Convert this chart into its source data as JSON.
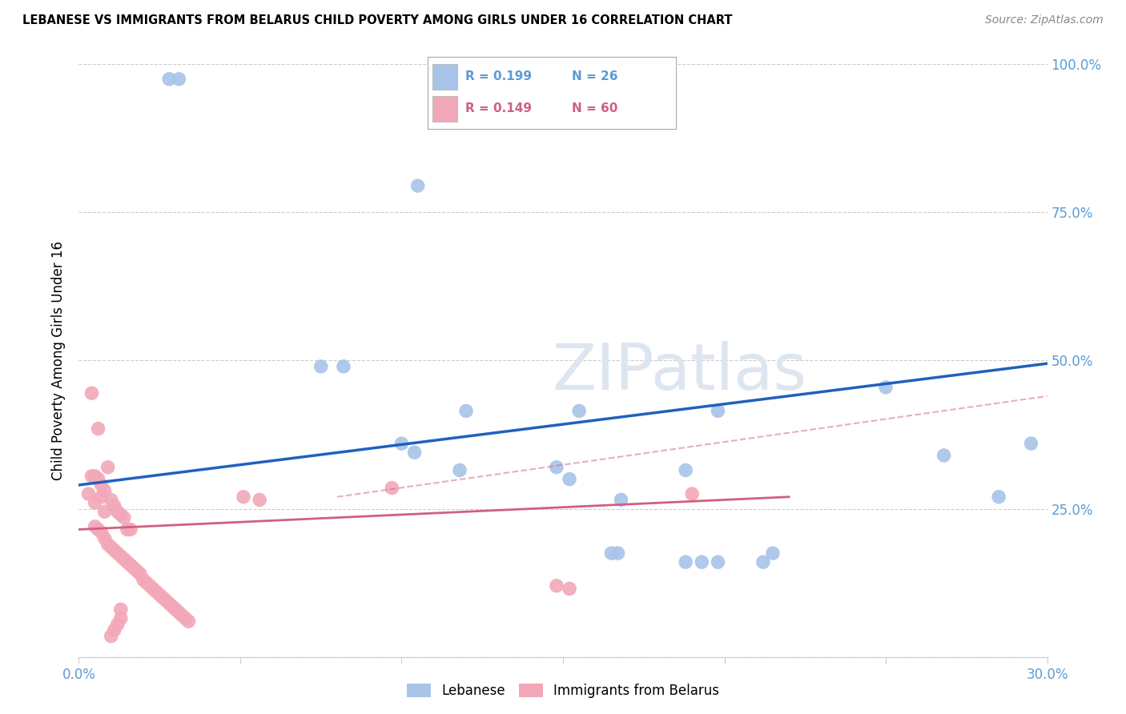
{
  "title": "LEBANESE VS IMMIGRANTS FROM BELARUS CHILD POVERTY AMONG GIRLS UNDER 16 CORRELATION CHART",
  "source": "Source: ZipAtlas.com",
  "ylabel": "Child Poverty Among Girls Under 16",
  "xlim": [
    0.0,
    0.3
  ],
  "ylim": [
    0.0,
    1.0
  ],
  "x_ticks": [
    0.0,
    0.05,
    0.1,
    0.15,
    0.2,
    0.25,
    0.3
  ],
  "x_tick_labels": [
    "0.0%",
    "",
    "",
    "",
    "",
    "",
    "30.0%"
  ],
  "y_ticks": [
    0.0,
    0.25,
    0.5,
    0.75,
    1.0
  ],
  "y_tick_labels": [
    "",
    "25.0%",
    "50.0%",
    "75.0%",
    "100.0%"
  ],
  "legend_labels": [
    "Lebanese",
    "Immigrants from Belarus"
  ],
  "blue_R": "0.199",
  "blue_N": "26",
  "pink_R": "0.149",
  "pink_N": "60",
  "watermark": "ZIPatlas",
  "blue_color": "#a8c4e8",
  "pink_color": "#f2a8b8",
  "blue_line_color": "#2060c0",
  "pink_line_color": "#d06080",
  "blue_scatter": [
    [
      0.028,
      0.975
    ],
    [
      0.031,
      0.975
    ],
    [
      0.105,
      0.795
    ],
    [
      0.075,
      0.49
    ],
    [
      0.082,
      0.49
    ],
    [
      0.12,
      0.415
    ],
    [
      0.1,
      0.36
    ],
    [
      0.104,
      0.345
    ],
    [
      0.118,
      0.315
    ],
    [
      0.155,
      0.415
    ],
    [
      0.148,
      0.32
    ],
    [
      0.152,
      0.3
    ],
    [
      0.165,
      0.175
    ],
    [
      0.188,
      0.16
    ],
    [
      0.193,
      0.16
    ],
    [
      0.188,
      0.315
    ],
    [
      0.198,
      0.16
    ],
    [
      0.212,
      0.16
    ],
    [
      0.168,
      0.265
    ],
    [
      0.198,
      0.415
    ],
    [
      0.25,
      0.455
    ],
    [
      0.268,
      0.34
    ],
    [
      0.285,
      0.27
    ],
    [
      0.295,
      0.36
    ],
    [
      0.167,
      0.175
    ],
    [
      0.215,
      0.175
    ]
  ],
  "pink_scatter": [
    [
      0.004,
      0.445
    ],
    [
      0.006,
      0.385
    ],
    [
      0.004,
      0.305
    ],
    [
      0.005,
      0.305
    ],
    [
      0.006,
      0.3
    ],
    [
      0.007,
      0.29
    ],
    [
      0.003,
      0.275
    ],
    [
      0.005,
      0.26
    ],
    [
      0.008,
      0.245
    ],
    [
      0.009,
      0.32
    ],
    [
      0.007,
      0.27
    ],
    [
      0.008,
      0.28
    ],
    [
      0.01,
      0.265
    ],
    [
      0.011,
      0.255
    ],
    [
      0.012,
      0.245
    ],
    [
      0.013,
      0.24
    ],
    [
      0.014,
      0.235
    ],
    [
      0.015,
      0.215
    ],
    [
      0.016,
      0.215
    ],
    [
      0.005,
      0.22
    ],
    [
      0.006,
      0.215
    ],
    [
      0.007,
      0.21
    ],
    [
      0.008,
      0.2
    ],
    [
      0.009,
      0.19
    ],
    [
      0.01,
      0.185
    ],
    [
      0.011,
      0.18
    ],
    [
      0.012,
      0.175
    ],
    [
      0.013,
      0.17
    ],
    [
      0.014,
      0.165
    ],
    [
      0.015,
      0.16
    ],
    [
      0.016,
      0.155
    ],
    [
      0.017,
      0.15
    ],
    [
      0.018,
      0.145
    ],
    [
      0.019,
      0.14
    ],
    [
      0.02,
      0.13
    ],
    [
      0.021,
      0.125
    ],
    [
      0.022,
      0.12
    ],
    [
      0.023,
      0.115
    ],
    [
      0.024,
      0.11
    ],
    [
      0.025,
      0.105
    ],
    [
      0.026,
      0.1
    ],
    [
      0.027,
      0.095
    ],
    [
      0.028,
      0.09
    ],
    [
      0.029,
      0.085
    ],
    [
      0.03,
      0.08
    ],
    [
      0.031,
      0.075
    ],
    [
      0.032,
      0.07
    ],
    [
      0.033,
      0.065
    ],
    [
      0.034,
      0.06
    ],
    [
      0.013,
      0.08
    ],
    [
      0.013,
      0.065
    ],
    [
      0.012,
      0.055
    ],
    [
      0.011,
      0.045
    ],
    [
      0.01,
      0.035
    ],
    [
      0.051,
      0.27
    ],
    [
      0.056,
      0.265
    ],
    [
      0.097,
      0.285
    ],
    [
      0.19,
      0.275
    ],
    [
      0.148,
      0.12
    ],
    [
      0.152,
      0.115
    ]
  ],
  "blue_trend": [
    0.0,
    0.3,
    0.29,
    0.495
  ],
  "pink_trend": [
    0.0,
    0.22,
    0.215,
    0.27
  ],
  "pink_trend_dashed": [
    0.08,
    0.3,
    0.27,
    0.44
  ],
  "background_color": "#ffffff",
  "grid_color": "#cccccc"
}
